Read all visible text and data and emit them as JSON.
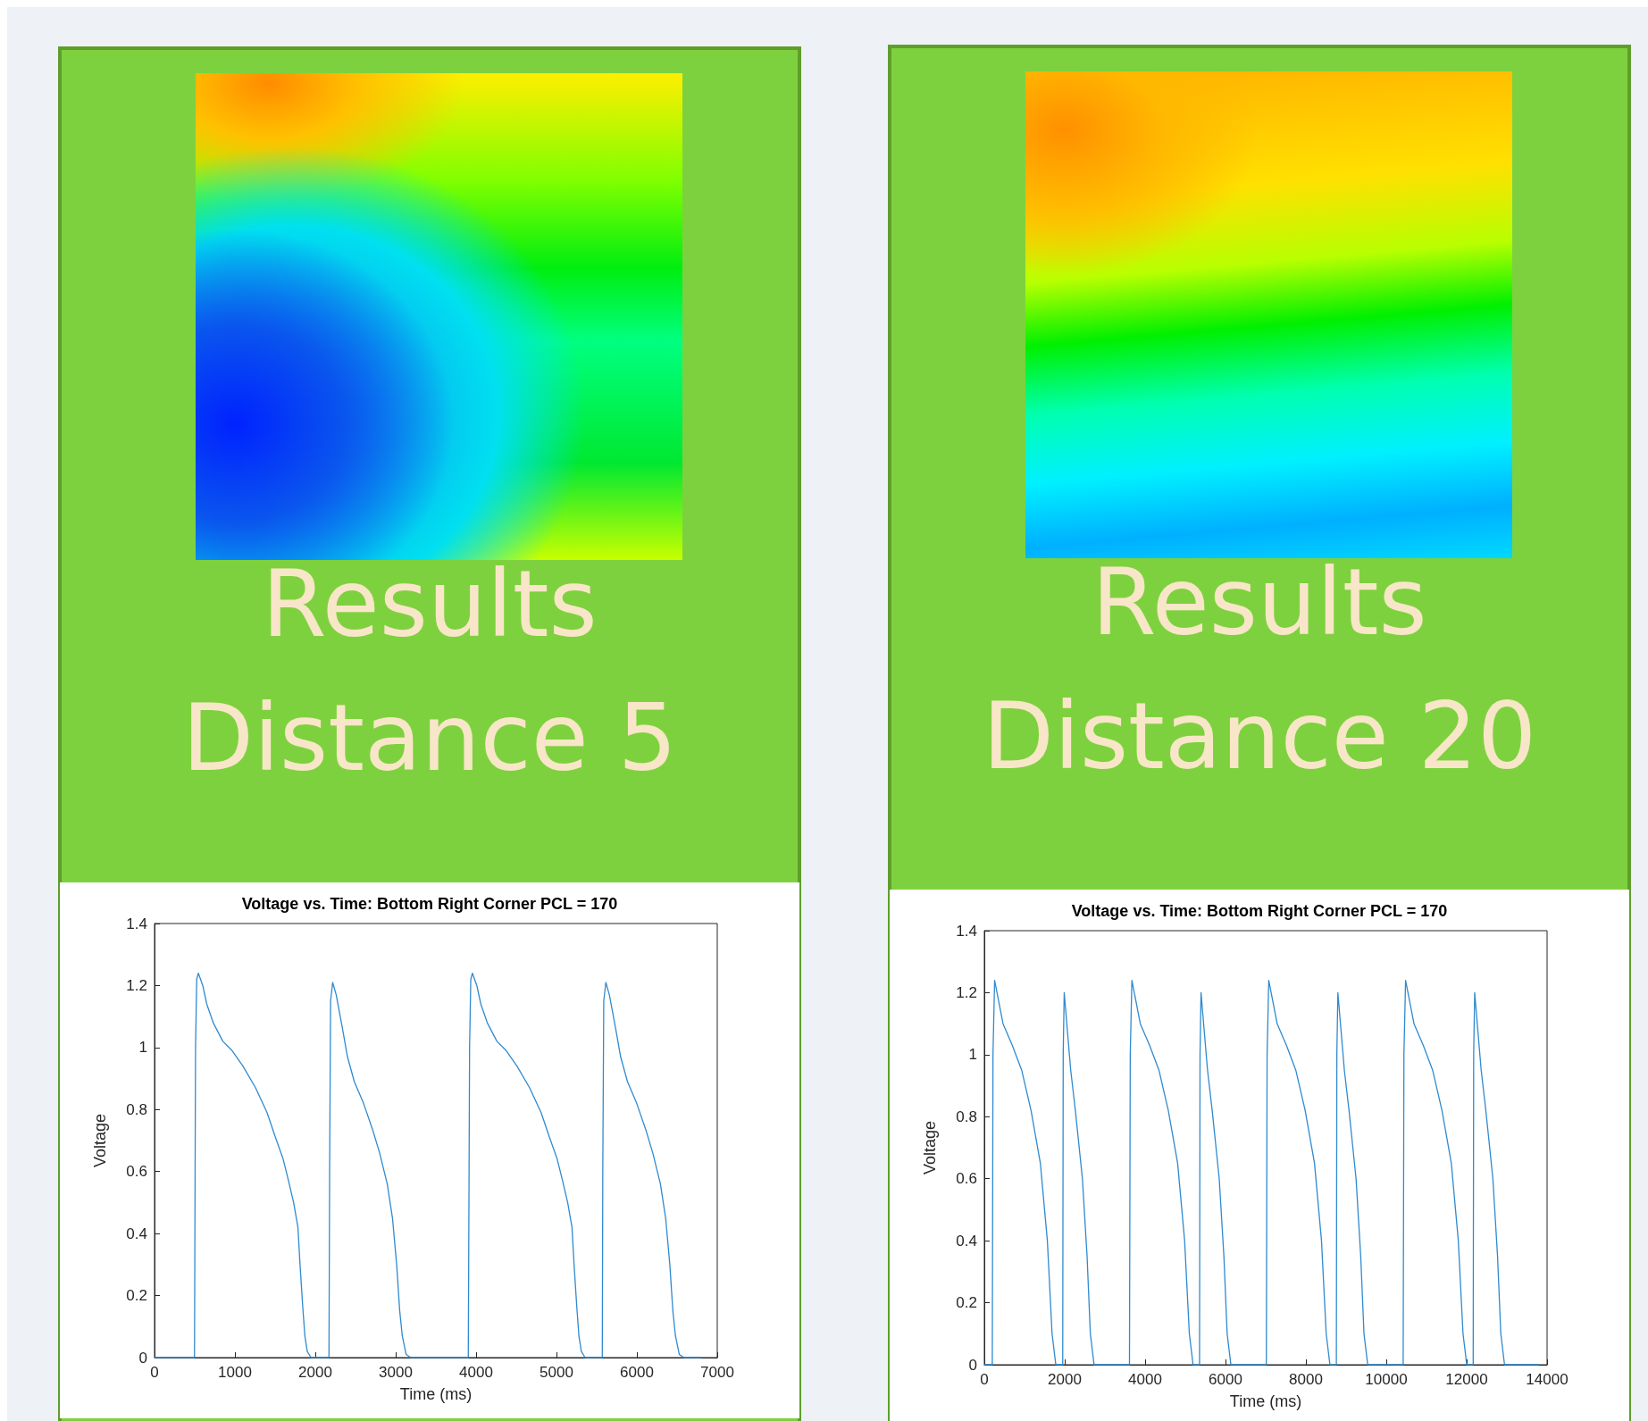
{
  "chart_data": [
    {
      "type": "line",
      "title": "Results Distance 5",
      "subtitle": "Voltage vs. Time: Bottom Right Corner PCL = 170",
      "xlabel": "Time (ms)",
      "ylabel": "Voltage",
      "color": "#2f8ad0",
      "marker": "none",
      "xlim": [
        0,
        7000
      ],
      "xticks": [
        0,
        1000,
        2000,
        3000,
        4000,
        5000,
        6000,
        7000
      ],
      "ylim": [
        0,
        1.4
      ],
      "yticks": [
        0,
        0.2,
        0.4,
        0.6,
        0.8,
        1,
        1.2,
        1.4
      ],
      "x": [
        0,
        497,
        510,
        525,
        545,
        600,
        650,
        730,
        850,
        965,
        1100,
        1257,
        1400,
        1491,
        1600,
        1667,
        1730,
        1784,
        1810,
        1842,
        1870,
        1900,
        1947,
        2170,
        2178,
        2190,
        2216,
        2260,
        2339,
        2400,
        2485,
        2600,
        2719,
        2800,
        2895,
        2960,
        3012,
        3050,
        3082,
        3130,
        3187,
        3903,
        3906,
        3919,
        3934,
        3954,
        4009,
        4059,
        4139,
        4259,
        4374,
        4509,
        4666,
        4809,
        4900,
        5009,
        5076,
        5139,
        5193,
        5219,
        5251,
        5279,
        5309,
        5356,
        5570,
        5576,
        5588,
        5614,
        5658,
        5737,
        5798,
        5883,
        5998,
        6117,
        6198,
        6293,
        6358,
        6410,
        6448,
        6480,
        6528,
        6585,
        6800
      ],
      "values": [
        0,
        0,
        1.0,
        1.22,
        1.24,
        1.2,
        1.14,
        1.08,
        1.02,
        0.99,
        0.94,
        0.87,
        0.79,
        0.72,
        0.64,
        0.57,
        0.5,
        0.42,
        0.3,
        0.17,
        0.07,
        0.02,
        0,
        0,
        0.6,
        1.15,
        1.21,
        1.17,
        1.06,
        0.97,
        0.89,
        0.82,
        0.73,
        0.66,
        0.56,
        0.45,
        0.3,
        0.15,
        0.07,
        0.01,
        0,
        0,
        0,
        1.0,
        1.22,
        1.24,
        1.2,
        1.14,
        1.08,
        1.02,
        0.99,
        0.94,
        0.87,
        0.79,
        0.72,
        0.64,
        0.57,
        0.5,
        0.42,
        0.3,
        0.17,
        0.07,
        0.02,
        0,
        0,
        0.6,
        1.15,
        1.21,
        1.17,
        1.06,
        0.97,
        0.89,
        0.82,
        0.73,
        0.66,
        0.56,
        0.45,
        0.3,
        0.15,
        0.07,
        0.01,
        0,
        0
      ]
    },
    {
      "type": "line",
      "title": "Results Distance 20",
      "subtitle": "Voltage vs. Time: Bottom Right Corner PCL = 170",
      "xlabel": "Time (ms)",
      "ylabel": "Voltage",
      "color": "#2f8ad0",
      "marker": "none",
      "xlim": [
        0,
        14000
      ],
      "xticks": [
        0,
        2000,
        4000,
        6000,
        8000,
        10000,
        12000,
        14000
      ],
      "ylim": [
        0,
        1.4
      ],
      "yticks": [
        0,
        0.2,
        0.4,
        0.6,
        0.8,
        1,
        1.2,
        1.4
      ],
      "x": [
        0,
        198,
        215,
        256,
        465,
        697,
        929,
        1162,
        1394,
        1568,
        1685,
        1778,
        1950,
        1962,
        1987,
        2149,
        2265,
        2440,
        2556,
        2637,
        2730,
        3611,
        3613,
        3630,
        3671,
        3880,
        4112,
        4344,
        4577,
        4809,
        4983,
        5100,
        5193,
        5354,
        5366,
        5391,
        5553,
        5669,
        5844,
        5960,
        6041,
        6134,
        7016,
        7018,
        7035,
        7076,
        7285,
        7517,
        7749,
        7982,
        8214,
        8388,
        8505,
        8598,
        8758,
        8770,
        8795,
        8957,
        9073,
        9248,
        9364,
        9445,
        9538,
        10420,
        10422,
        10439,
        10480,
        10689,
        10921,
        11153,
        11386,
        11618,
        11792,
        11909,
        12002,
        12162,
        12174,
        12199,
        12361,
        12477,
        12652,
        12768,
        12849,
        12942,
        13800
      ],
      "values": [
        0,
        0,
        1.0,
        1.24,
        1.1,
        1.03,
        0.95,
        0.82,
        0.65,
        0.4,
        0.1,
        0,
        0,
        1.0,
        1.2,
        0.95,
        0.82,
        0.6,
        0.35,
        0.1,
        0,
        0,
        0,
        1.0,
        1.24,
        1.1,
        1.03,
        0.95,
        0.82,
        0.65,
        0.4,
        0.1,
        0,
        0,
        1.0,
        1.2,
        0.95,
        0.82,
        0.6,
        0.35,
        0.1,
        0,
        0,
        0,
        1.0,
        1.24,
        1.1,
        1.03,
        0.95,
        0.82,
        0.65,
        0.4,
        0.1,
        0,
        0,
        1.0,
        1.2,
        0.95,
        0.82,
        0.6,
        0.35,
        0.1,
        0,
        0,
        0,
        1.0,
        1.24,
        1.1,
        1.03,
        0.95,
        0.82,
        0.65,
        0.4,
        0.1,
        0,
        0,
        1.0,
        1.2,
        0.95,
        0.82,
        0.6,
        0.35,
        0.1,
        0,
        0
      ]
    }
  ]
}
